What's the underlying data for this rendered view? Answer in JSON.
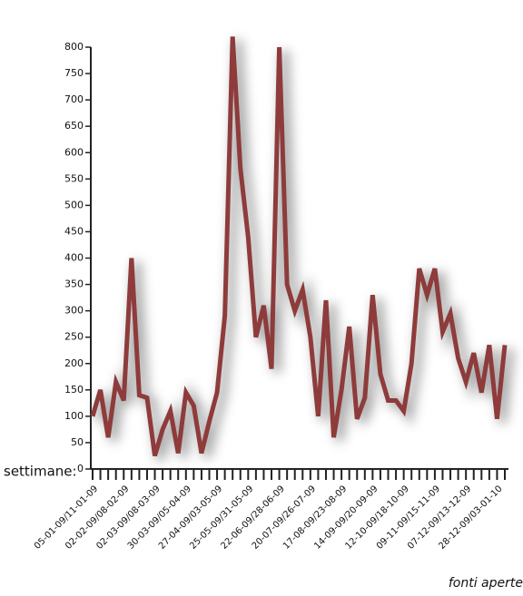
{
  "chart_data": {
    "type": "line",
    "x_label": "settimane:",
    "source": "fonti aperte",
    "categories": [
      "05-01-09/11-01-09",
      null,
      null,
      null,
      "02-02-09/08-02-09",
      null,
      null,
      null,
      "02-03-09/08-03-09",
      null,
      null,
      null,
      "30-03-09/05-04-09",
      null,
      null,
      null,
      "27-04-09/03-05-09",
      null,
      null,
      null,
      "25-05-09/31-05-09",
      null,
      null,
      null,
      "22-06-09/28-06-09",
      null,
      null,
      null,
      "20-07-09/26-07-09",
      null,
      null,
      null,
      "17-08-09/23-08-09",
      null,
      null,
      null,
      "14-09-09/20-09-09",
      null,
      null,
      null,
      "12-10-09/18-10-09",
      null,
      null,
      null,
      "09-11-09/15-11-09",
      null,
      null,
      null,
      "07-12-09/13-12-09",
      null,
      null,
      null,
      "28-12-09/03-01-10",
      null
    ],
    "values": [
      100,
      150,
      60,
      165,
      130,
      400,
      140,
      135,
      25,
      75,
      110,
      30,
      145,
      120,
      30,
      90,
      145,
      290,
      820,
      570,
      440,
      250,
      310,
      190,
      800,
      350,
      300,
      340,
      250,
      100,
      320,
      60,
      150,
      270,
      95,
      135,
      330,
      180,
      130,
      130,
      110,
      200,
      380,
      330,
      380,
      260,
      295,
      210,
      165,
      220,
      145,
      235,
      95,
      235
    ],
    "color": "#8e3b3b",
    "ylim": [
      0,
      800
    ],
    "yticks": [
      0,
      50,
      100,
      150,
      200,
      250,
      300,
      350,
      400,
      450,
      500,
      550,
      600,
      650,
      700,
      750,
      800
    ],
    "grid": false
  }
}
